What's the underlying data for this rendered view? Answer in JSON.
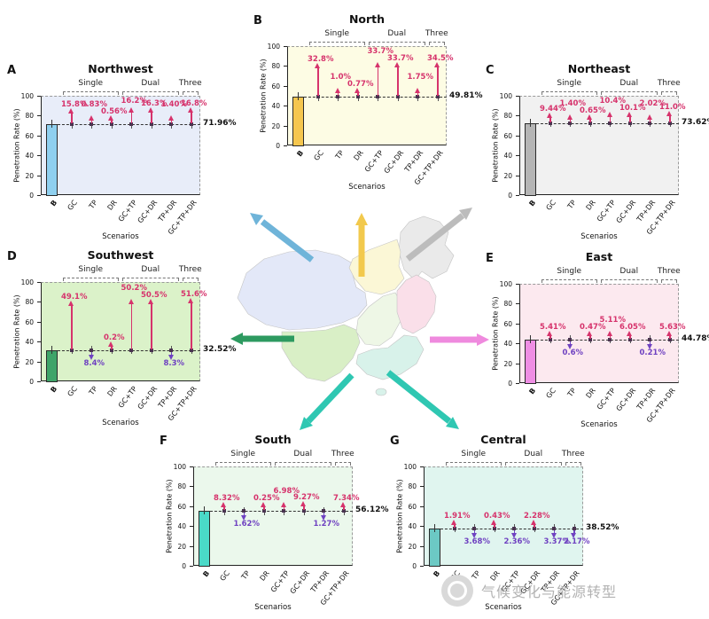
{
  "figure": {
    "watermark_text": "气候变化与能源转型"
  },
  "annotation_colors": {
    "up": "#d6336c",
    "down": "#6f42c1"
  },
  "chart_data": [
    {
      "type": "bar",
      "panel": "A",
      "region": "Northwest",
      "ylabel": "Penetration Rate (%)",
      "xlabel": "Scenarios",
      "ylim": [
        0,
        100
      ],
      "yticks": [
        0,
        20,
        40,
        60,
        80,
        100
      ],
      "categories": [
        "B",
        "GC",
        "TP",
        "DR",
        "GC+TP",
        "GC+DR",
        "TP+DR",
        "GC+TP+DR"
      ],
      "groups": [
        {
          "label": "Single",
          "from": 1,
          "to": 3
        },
        {
          "label": "Dual",
          "from": 4,
          "to": 6
        },
        {
          "label": "Three",
          "from": 7,
          "to": 7
        }
      ],
      "baseline": {
        "value": 71.96,
        "label": "71.96%"
      },
      "colors": {
        "bar": "#8fd0ef",
        "bg": "#e8edf9"
      },
      "deltas": [
        {
          "scenario": "GC",
          "label": "15.8%",
          "value": 15.8,
          "direction": "up"
        },
        {
          "scenario": "TP",
          "label": "0.83%",
          "value": 0.83,
          "direction": "up"
        },
        {
          "scenario": "DR",
          "label": "0.56%",
          "value": 0.56,
          "direction": "up"
        },
        {
          "scenario": "GC+TP",
          "label": "16.2%",
          "value": 16.2,
          "direction": "up"
        },
        {
          "scenario": "GC+DR",
          "label": "16.3%",
          "value": 16.3,
          "direction": "up"
        },
        {
          "scenario": "TP+DR",
          "label": "1.40%",
          "value": 1.4,
          "direction": "up"
        },
        {
          "scenario": "GC+TP+DR",
          "label": "16.8%",
          "value": 16.8,
          "direction": "up"
        }
      ]
    },
    {
      "type": "bar",
      "panel": "B",
      "region": "North",
      "ylabel": "Penetration Rate (%)",
      "xlabel": "Scenarios",
      "ylim": [
        0,
        100
      ],
      "yticks": [
        0,
        20,
        40,
        60,
        80,
        100
      ],
      "categories": [
        "B",
        "GC",
        "TP",
        "DR",
        "GC+TP",
        "GC+DR",
        "TP+DR",
        "GC+TP+DR"
      ],
      "groups": [
        {
          "label": "Single",
          "from": 1,
          "to": 3
        },
        {
          "label": "Dual",
          "from": 4,
          "to": 6
        },
        {
          "label": "Three",
          "from": 7,
          "to": 7
        }
      ],
      "baseline": {
        "value": 49.81,
        "label": "49.81%"
      },
      "colors": {
        "bar": "#f5c64e",
        "bg": "#fdfce4"
      },
      "deltas": [
        {
          "scenario": "GC",
          "label": "32.8%",
          "value": 32.8,
          "direction": "up"
        },
        {
          "scenario": "TP",
          "label": "1.0%",
          "value": 1.0,
          "direction": "up"
        },
        {
          "scenario": "DR",
          "label": "0.77%",
          "value": 0.77,
          "direction": "up"
        },
        {
          "scenario": "GC+TP",
          "label": "33.7%",
          "value": 33.7,
          "direction": "up"
        },
        {
          "scenario": "GC+DR",
          "label": "33.7%",
          "value": 33.7,
          "direction": "up"
        },
        {
          "scenario": "TP+DR",
          "label": "1.75%",
          "value": 1.75,
          "direction": "up"
        },
        {
          "scenario": "GC+TP+DR",
          "label": "34.5%",
          "value": 34.5,
          "direction": "up"
        }
      ]
    },
    {
      "type": "bar",
      "panel": "C",
      "region": "Northeast",
      "ylabel": "Penetration Rate (%)",
      "xlabel": "Scenarios",
      "ylim": [
        0,
        100
      ],
      "yticks": [
        0,
        20,
        40,
        60,
        80,
        100
      ],
      "categories": [
        "B",
        "GC",
        "TP",
        "DR",
        "GC+TP",
        "GC+DR",
        "TP+DR",
        "GC+TP+DR"
      ],
      "groups": [
        {
          "label": "Single",
          "from": 1,
          "to": 3
        },
        {
          "label": "Dual",
          "from": 4,
          "to": 6
        },
        {
          "label": "Three",
          "from": 7,
          "to": 7
        }
      ],
      "baseline": {
        "value": 73.62,
        "label": "73.62%"
      },
      "colors": {
        "bar": "#b5b5b5",
        "bg": "#f1f1f1"
      },
      "deltas": [
        {
          "scenario": "GC",
          "label": "9.44%",
          "value": 9.44,
          "direction": "up"
        },
        {
          "scenario": "TP",
          "label": "1.40%",
          "value": 1.4,
          "direction": "up"
        },
        {
          "scenario": "DR",
          "label": "0.65%",
          "value": 0.65,
          "direction": "up"
        },
        {
          "scenario": "GC+TP",
          "label": "10.4%",
          "value": 10.4,
          "direction": "up"
        },
        {
          "scenario": "GC+DR",
          "label": "10.1%",
          "value": 10.1,
          "direction": "up"
        },
        {
          "scenario": "TP+DR",
          "label": "2.02%",
          "value": 2.02,
          "direction": "up"
        },
        {
          "scenario": "GC+TP+DR",
          "label": "11.0%",
          "value": 11.0,
          "direction": "up"
        }
      ]
    },
    {
      "type": "bar",
      "panel": "D",
      "region": "Southwest",
      "ylabel": "Penetration Rate (%)",
      "xlabel": "Scenarios",
      "ylim": [
        0,
        100
      ],
      "yticks": [
        0,
        20,
        40,
        60,
        80,
        100
      ],
      "categories": [
        "B",
        "GC",
        "TP",
        "DR",
        "GC+TP",
        "GC+DR",
        "TP+DR",
        "GC+TP+DR"
      ],
      "groups": [
        {
          "label": "Single",
          "from": 1,
          "to": 3
        },
        {
          "label": "Dual",
          "from": 4,
          "to": 6
        },
        {
          "label": "Three",
          "from": 7,
          "to": 7
        }
      ],
      "baseline": {
        "value": 32.52,
        "label": "32.52%"
      },
      "colors": {
        "bar": "#3fa469",
        "bg": "#dbf2c9"
      },
      "deltas": [
        {
          "scenario": "GC",
          "label": "49.1%",
          "value": 49.1,
          "direction": "up"
        },
        {
          "scenario": "TP",
          "label": "8.4%",
          "value": 8.4,
          "direction": "down"
        },
        {
          "scenario": "DR",
          "label": "0.2%",
          "value": 0.2,
          "direction": "up"
        },
        {
          "scenario": "GC+TP",
          "label": "50.2%",
          "value": 50.2,
          "direction": "up"
        },
        {
          "scenario": "GC+DR",
          "label": "50.5%",
          "value": 50.5,
          "direction": "up"
        },
        {
          "scenario": "TP+DR",
          "label": "8.3%",
          "value": 8.3,
          "direction": "down"
        },
        {
          "scenario": "GC+TP+DR",
          "label": "51.6%",
          "value": 51.6,
          "direction": "up"
        }
      ]
    },
    {
      "type": "bar",
      "panel": "E",
      "region": "East",
      "ylabel": "Penetration Rate (%)",
      "xlabel": "Scenarios",
      "ylim": [
        0,
        100
      ],
      "yticks": [
        0,
        20,
        40,
        60,
        80,
        100
      ],
      "categories": [
        "B",
        "GC",
        "TP",
        "DR",
        "GC+TP",
        "GC+DR",
        "TP+DR",
        "GC+TP+DR"
      ],
      "groups": [
        {
          "label": "Single",
          "from": 1,
          "to": 3
        },
        {
          "label": "Dual",
          "from": 4,
          "to": 6
        },
        {
          "label": "Three",
          "from": 7,
          "to": 7
        }
      ],
      "baseline": {
        "value": 44.78,
        "label": "44.78%"
      },
      "colors": {
        "bar": "#ef8ee4",
        "bg": "#fce9ef"
      },
      "deltas": [
        {
          "scenario": "GC",
          "label": "5.41%",
          "value": 5.41,
          "direction": "up"
        },
        {
          "scenario": "TP",
          "label": "0.6%",
          "value": 0.6,
          "direction": "down"
        },
        {
          "scenario": "DR",
          "label": "0.47%",
          "value": 0.47,
          "direction": "up"
        },
        {
          "scenario": "GC+TP",
          "label": "5.11%",
          "value": 5.11,
          "direction": "up"
        },
        {
          "scenario": "GC+DR",
          "label": "6.05%",
          "value": 6.05,
          "direction": "up"
        },
        {
          "scenario": "TP+DR",
          "label": "0.21%",
          "value": 0.21,
          "direction": "down"
        },
        {
          "scenario": "GC+TP+DR",
          "label": "5.63%",
          "value": 5.63,
          "direction": "up"
        }
      ]
    },
    {
      "type": "bar",
      "panel": "F",
      "region": "South",
      "ylabel": "Penetration Rate (%)",
      "xlabel": "Scenarios",
      "ylim": [
        0,
        100
      ],
      "yticks": [
        0,
        20,
        40,
        60,
        80,
        100
      ],
      "categories": [
        "B",
        "GC",
        "TP",
        "DR",
        "GC+TP",
        "GC+DR",
        "TP+DR",
        "GC+TP+DR"
      ],
      "groups": [
        {
          "label": "Single",
          "from": 1,
          "to": 3
        },
        {
          "label": "Dual",
          "from": 4,
          "to": 6
        },
        {
          "label": "Three",
          "from": 7,
          "to": 7
        }
      ],
      "baseline": {
        "value": 56.12,
        "label": "56.12%"
      },
      "colors": {
        "bar": "#4ad9c8",
        "bg": "#ebf8ec"
      },
      "deltas": [
        {
          "scenario": "GC",
          "label": "8.32%",
          "value": 8.32,
          "direction": "up"
        },
        {
          "scenario": "TP",
          "label": "1.62%",
          "value": 1.62,
          "direction": "down"
        },
        {
          "scenario": "DR",
          "label": "0.25%",
          "value": 0.25,
          "direction": "up"
        },
        {
          "scenario": "GC+TP",
          "label": "6.98%",
          "value": 6.98,
          "direction": "up"
        },
        {
          "scenario": "GC+DR",
          "label": "9.27%",
          "value": 9.27,
          "direction": "up"
        },
        {
          "scenario": "TP+DR",
          "label": "1.27%",
          "value": 1.27,
          "direction": "down"
        },
        {
          "scenario": "GC+TP+DR",
          "label": "7.34%",
          "value": 7.34,
          "direction": "up"
        }
      ]
    },
    {
      "type": "bar",
      "panel": "G",
      "region": "Central",
      "ylabel": "Penetration Rate (%)",
      "xlabel": "Scenarios",
      "ylim": [
        0,
        100
      ],
      "yticks": [
        0,
        20,
        40,
        60,
        80,
        100
      ],
      "categories": [
        "B",
        "GC",
        "TP",
        "DR",
        "GC+TP",
        "GC+DR",
        "TP+DR",
        "GC+TP+DR"
      ],
      "groups": [
        {
          "label": "Single",
          "from": 1,
          "to": 3
        },
        {
          "label": "Dual",
          "from": 4,
          "to": 6
        },
        {
          "label": "Three",
          "from": 7,
          "to": 7
        }
      ],
      "baseline": {
        "value": 38.52,
        "label": "38.52%"
      },
      "colors": {
        "bar": "#6cc9c4",
        "bg": "#e0f5ef"
      },
      "deltas": [
        {
          "scenario": "GC",
          "label": "1.91%",
          "value": 1.91,
          "direction": "up"
        },
        {
          "scenario": "TP",
          "label": "3.68%",
          "value": 3.68,
          "direction": "down"
        },
        {
          "scenario": "DR",
          "label": "0.43%",
          "value": 0.43,
          "direction": "up"
        },
        {
          "scenario": "GC+TP",
          "label": "2.36%",
          "value": 2.36,
          "direction": "down"
        },
        {
          "scenario": "GC+DR",
          "label": "2.28%",
          "value": 2.28,
          "direction": "up"
        },
        {
          "scenario": "TP+DR",
          "label": "3.37%",
          "value": 3.37,
          "direction": "down"
        },
        {
          "scenario": "GC+TP+DR",
          "label": "2.17%",
          "value": 2.17,
          "direction": "down"
        }
      ]
    }
  ],
  "map": {
    "region_colors": {
      "Northwest": "#e3e8f8",
      "North": "#fbf7d6",
      "Northeast": "#eaeaea",
      "Southwest": "#d9efc6",
      "Central": "#eef7e6",
      "East": "#fadfe9",
      "South": "#d8f2ea"
    },
    "arrow_colors": {
      "Northwest": "#6fb4d9",
      "North": "#f2c94d",
      "Northeast": "#bcbcbc",
      "Southwest": "#2d9a60",
      "East": "#ef8ade",
      "South": "#2fc7b2",
      "Central": "#2fc7b2"
    }
  }
}
